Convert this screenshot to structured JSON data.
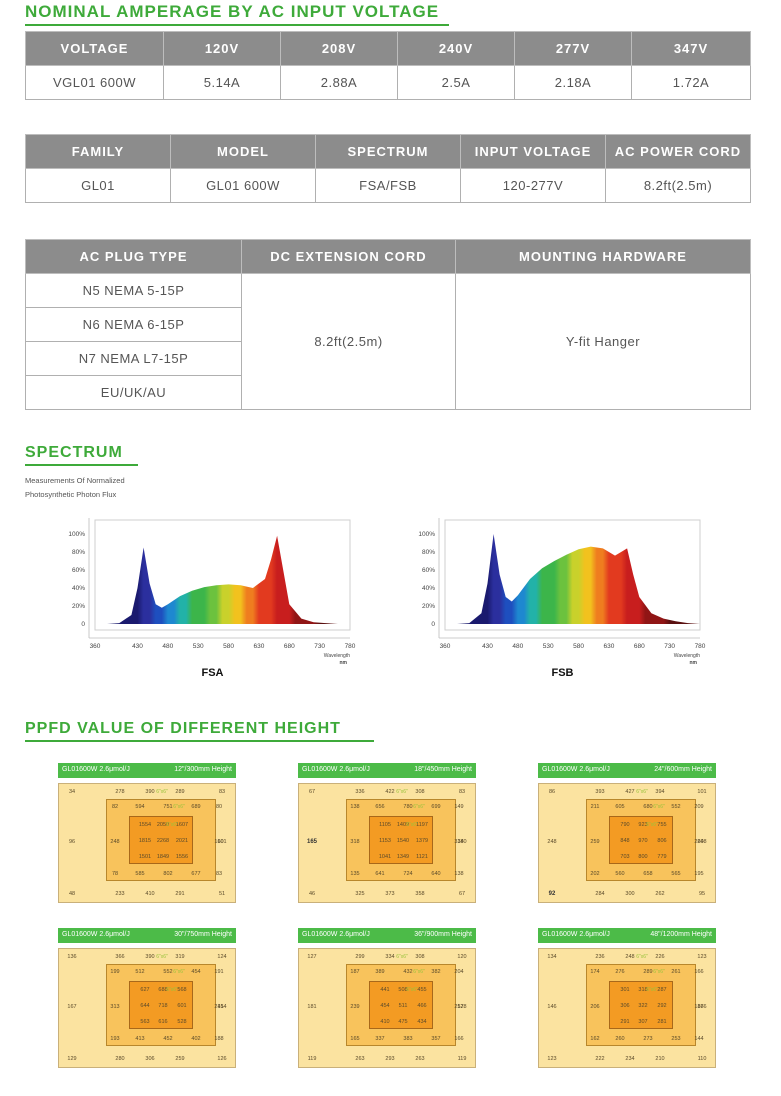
{
  "amperage": {
    "title": "NOMINAL AMPERAGE BY AC INPUT VOLTAGE",
    "headers": [
      "VOLTAGE",
      "120V",
      "208V",
      "240V",
      "277V",
      "347V"
    ],
    "row": [
      "VGL01 600W",
      "5.14A",
      "2.88A",
      "2.5A",
      "2.18A",
      "1.72A"
    ]
  },
  "product": {
    "headers": [
      "FAMILY",
      "MODEL",
      "SPECTRUM",
      "INPUT VOLTAGE",
      "AC POWER CORD"
    ],
    "row": [
      "GL01",
      "GL01 600W",
      "FSA/FSB",
      "120-277V",
      "8.2ft(2.5m)"
    ]
  },
  "accessories": {
    "headers": [
      "AC PLUG TYPE",
      "DC EXTENSION CORD",
      "MOUNTING HARDWARE"
    ],
    "plugs": [
      "N5 NEMA 5-15P",
      "N6 NEMA 6-15P",
      "N7 NEMA L7-15P",
      "EU/UK/AU"
    ],
    "dc_cord": "8.2ft(2.5m)",
    "mounting": "Y-fit Hanger"
  },
  "spectrum": {
    "title": "SPECTRUM",
    "subtitle_line1": "Measurements Of Normalized",
    "subtitle_line2": "Photosynthetic Photon Flux"
  },
  "chart_data": [
    {
      "type": "area",
      "title": "FSA",
      "xlabel": "Wavelength nm",
      "x": [
        380,
        400,
        420,
        430,
        440,
        450,
        460,
        470,
        480,
        500,
        520,
        540,
        560,
        580,
        600,
        620,
        640,
        650,
        660,
        670,
        680,
        700,
        720,
        740,
        760,
        780
      ],
      "y": [
        0,
        1,
        10,
        40,
        85,
        45,
        22,
        18,
        22,
        31,
        37,
        41,
        43,
        44,
        43,
        40,
        50,
        72,
        98,
        60,
        22,
        6,
        2,
        1,
        0,
        0
      ],
      "xticks": [
        "360",
        "430",
        "480",
        "530",
        "580",
        "630",
        "680",
        "730",
        "780"
      ],
      "yticks": [
        "0",
        "20%",
        "40%",
        "60%",
        "80%",
        "100%"
      ],
      "xlim": [
        360,
        780
      ],
      "ylim": [
        0,
        100
      ]
    },
    {
      "type": "area",
      "title": "FSB",
      "xlabel": "Wavelength nm",
      "x": [
        380,
        400,
        420,
        430,
        440,
        450,
        460,
        470,
        480,
        500,
        520,
        540,
        560,
        580,
        600,
        620,
        640,
        650,
        660,
        670,
        680,
        700,
        720,
        740,
        760,
        780
      ],
      "y": [
        0,
        1,
        12,
        45,
        100,
        55,
        30,
        25,
        32,
        50,
        62,
        70,
        77,
        83,
        86,
        84,
        76,
        80,
        84,
        55,
        30,
        12,
        6,
        3,
        1,
        0
      ],
      "xticks": [
        "360",
        "430",
        "480",
        "530",
        "580",
        "630",
        "680",
        "730",
        "780"
      ],
      "yticks": [
        "0",
        "20%",
        "40%",
        "60%",
        "80%",
        "100%"
      ],
      "xlim": [
        360,
        780
      ],
      "ylim": [
        0,
        100
      ]
    }
  ],
  "ppfd": {
    "title": "PPFD VALUE OF DIFFERENT HEIGHT",
    "grid_label": "6\"x6\"",
    "cards": [
      {
        "model": "GL01600W 2.6μmol/J",
        "height": "12\"/300mm Height",
        "outer": [
          "34",
          "278",
          "390",
          "289",
          "83",
          "96",
          "101",
          "48",
          "233",
          "410",
          "291",
          "51"
        ],
        "mid": [
          "82",
          "594",
          "751",
          "689",
          "80",
          "248",
          "160",
          "78",
          "585",
          "802",
          "677",
          "83"
        ],
        "inner": [
          "1554",
          "2050",
          "1607",
          "1815",
          "2268",
          "2021",
          "1501",
          "1849",
          "1556"
        ]
      },
      {
        "model": "GL01600W 2.6μmol/J",
        "height": "18\"/450mm Height",
        "outer": [
          "67",
          "336",
          "422",
          "308",
          "83",
          "165",
          "180",
          "46",
          "325",
          "373",
          "358",
          "67"
        ],
        "mid": [
          "138",
          "656",
          "780",
          "699",
          "149",
          "318",
          "334",
          "135",
          "641",
          "724",
          "640",
          "138"
        ],
        "inner": [
          "1105",
          "1409",
          "1197",
          "1153",
          "1540",
          "1379",
          "1041",
          "1349",
          "1121"
        ]
      },
      {
        "model": "GL01600W 2.6μmol/J",
        "height": "24\"/600mm Height",
        "outer": [
          "86",
          "393",
          "427",
          "394",
          "101",
          "248",
          "248",
          "92",
          "284",
          "300",
          "262",
          "95"
        ],
        "mid": [
          "211",
          "605",
          "680",
          "552",
          "209",
          "259",
          "260",
          "202",
          "560",
          "658",
          "565",
          "195"
        ],
        "inner": [
          "790",
          "923",
          "755",
          "848",
          "970",
          "806",
          "703",
          "800",
          "779"
        ]
      },
      {
        "model": "GL01600W 2.6μmol/J",
        "height": "30\"/750mm Height",
        "outer": [
          "136",
          "366",
          "390",
          "319",
          "124",
          "167",
          "154",
          "129",
          "280",
          "306",
          "259",
          "126"
        ],
        "mid": [
          "199",
          "512",
          "552",
          "454",
          "191",
          "313",
          "241",
          "193",
          "413",
          "452",
          "402",
          "188"
        ],
        "inner": [
          "627",
          "688",
          "568",
          "644",
          "718",
          "601",
          "563",
          "616",
          "528"
        ]
      },
      {
        "model": "GL01600W 2.6μmol/J",
        "height": "36\"/900mm Height",
        "outer": [
          "127",
          "299",
          "334",
          "308",
          "120",
          "181",
          "178",
          "119",
          "263",
          "293",
          "263",
          "119"
        ],
        "mid": [
          "187",
          "389",
          "432",
          "382",
          "204",
          "239",
          "252",
          "165",
          "337",
          "383",
          "357",
          "166"
        ],
        "inner": [
          "441",
          "508",
          "455",
          "454",
          "511",
          "466",
          "410",
          "475",
          "434"
        ]
      },
      {
        "model": "GL01600W 2.6μmol/J",
        "height": "48\"/1200mm Height",
        "outer": [
          "134",
          "236",
          "248",
          "226",
          "123",
          "146",
          "166",
          "123",
          "222",
          "234",
          "210",
          "110"
        ],
        "mid": [
          "174",
          "276",
          "289",
          "261",
          "166",
          "206",
          "187",
          "162",
          "260",
          "273",
          "253",
          "144"
        ],
        "inner": [
          "301",
          "318",
          "287",
          "306",
          "322",
          "292",
          "291",
          "307",
          "281"
        ]
      }
    ]
  }
}
